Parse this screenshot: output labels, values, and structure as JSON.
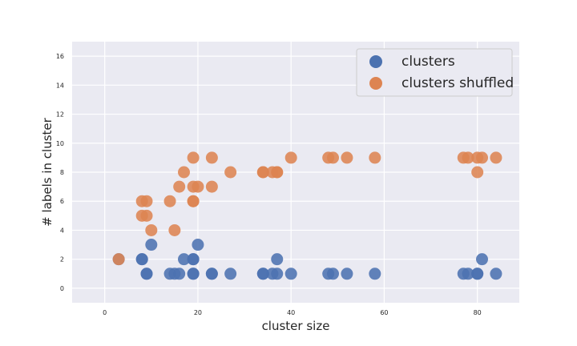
{
  "chart_data": {
    "type": "scatter",
    "title": "",
    "xlabel": "cluster size",
    "ylabel": "# labels in cluster",
    "xlim": [
      -7,
      89
    ],
    "ylim": [
      -1,
      17
    ],
    "xticks": [
      0,
      20,
      40,
      60,
      80
    ],
    "yticks": [
      0,
      2,
      4,
      6,
      8,
      10,
      12,
      14,
      16
    ],
    "grid": true,
    "legend": "top-right",
    "series": [
      {
        "name": "clusters",
        "color": "#4c72b0",
        "points": [
          [
            3,
            2
          ],
          [
            8,
            2
          ],
          [
            8,
            2
          ],
          [
            9,
            1
          ],
          [
            9,
            1
          ],
          [
            10,
            3
          ],
          [
            14,
            1
          ],
          [
            15,
            1
          ],
          [
            16,
            1
          ],
          [
            17,
            2
          ],
          [
            19,
            2
          ],
          [
            19,
            1
          ],
          [
            19,
            2
          ],
          [
            19,
            1
          ],
          [
            20,
            3
          ],
          [
            23,
            1
          ],
          [
            23,
            1
          ],
          [
            27,
            1
          ],
          [
            34,
            1
          ],
          [
            34,
            1
          ],
          [
            36,
            1
          ],
          [
            37,
            2
          ],
          [
            37,
            1
          ],
          [
            40,
            1
          ],
          [
            48,
            1
          ],
          [
            49,
            1
          ],
          [
            52,
            1
          ],
          [
            58,
            1
          ],
          [
            77,
            1
          ],
          [
            78,
            1
          ],
          [
            80,
            1
          ],
          [
            80,
            1
          ],
          [
            81,
            2
          ],
          [
            84,
            1
          ]
        ]
      },
      {
        "name": "clusters shuffled",
        "color": "#dd8452",
        "points": [
          [
            3,
            2
          ],
          [
            8,
            6
          ],
          [
            8,
            5
          ],
          [
            9,
            6
          ],
          [
            9,
            5
          ],
          [
            10,
            4
          ],
          [
            14,
            6
          ],
          [
            15,
            4
          ],
          [
            16,
            7
          ],
          [
            17,
            8
          ],
          [
            19,
            9
          ],
          [
            19,
            7
          ],
          [
            19,
            6
          ],
          [
            19,
            6
          ],
          [
            20,
            7
          ],
          [
            23,
            9
          ],
          [
            23,
            7
          ],
          [
            27,
            8
          ],
          [
            34,
            8
          ],
          [
            34,
            8
          ],
          [
            36,
            8
          ],
          [
            37,
            8
          ],
          [
            37,
            8
          ],
          [
            40,
            9
          ],
          [
            48,
            9
          ],
          [
            49,
            9
          ],
          [
            52,
            9
          ],
          [
            58,
            9
          ],
          [
            77,
            9
          ],
          [
            78,
            9
          ],
          [
            80,
            9
          ],
          [
            80,
            8
          ],
          [
            81,
            9
          ],
          [
            84,
            9
          ]
        ]
      }
    ]
  }
}
